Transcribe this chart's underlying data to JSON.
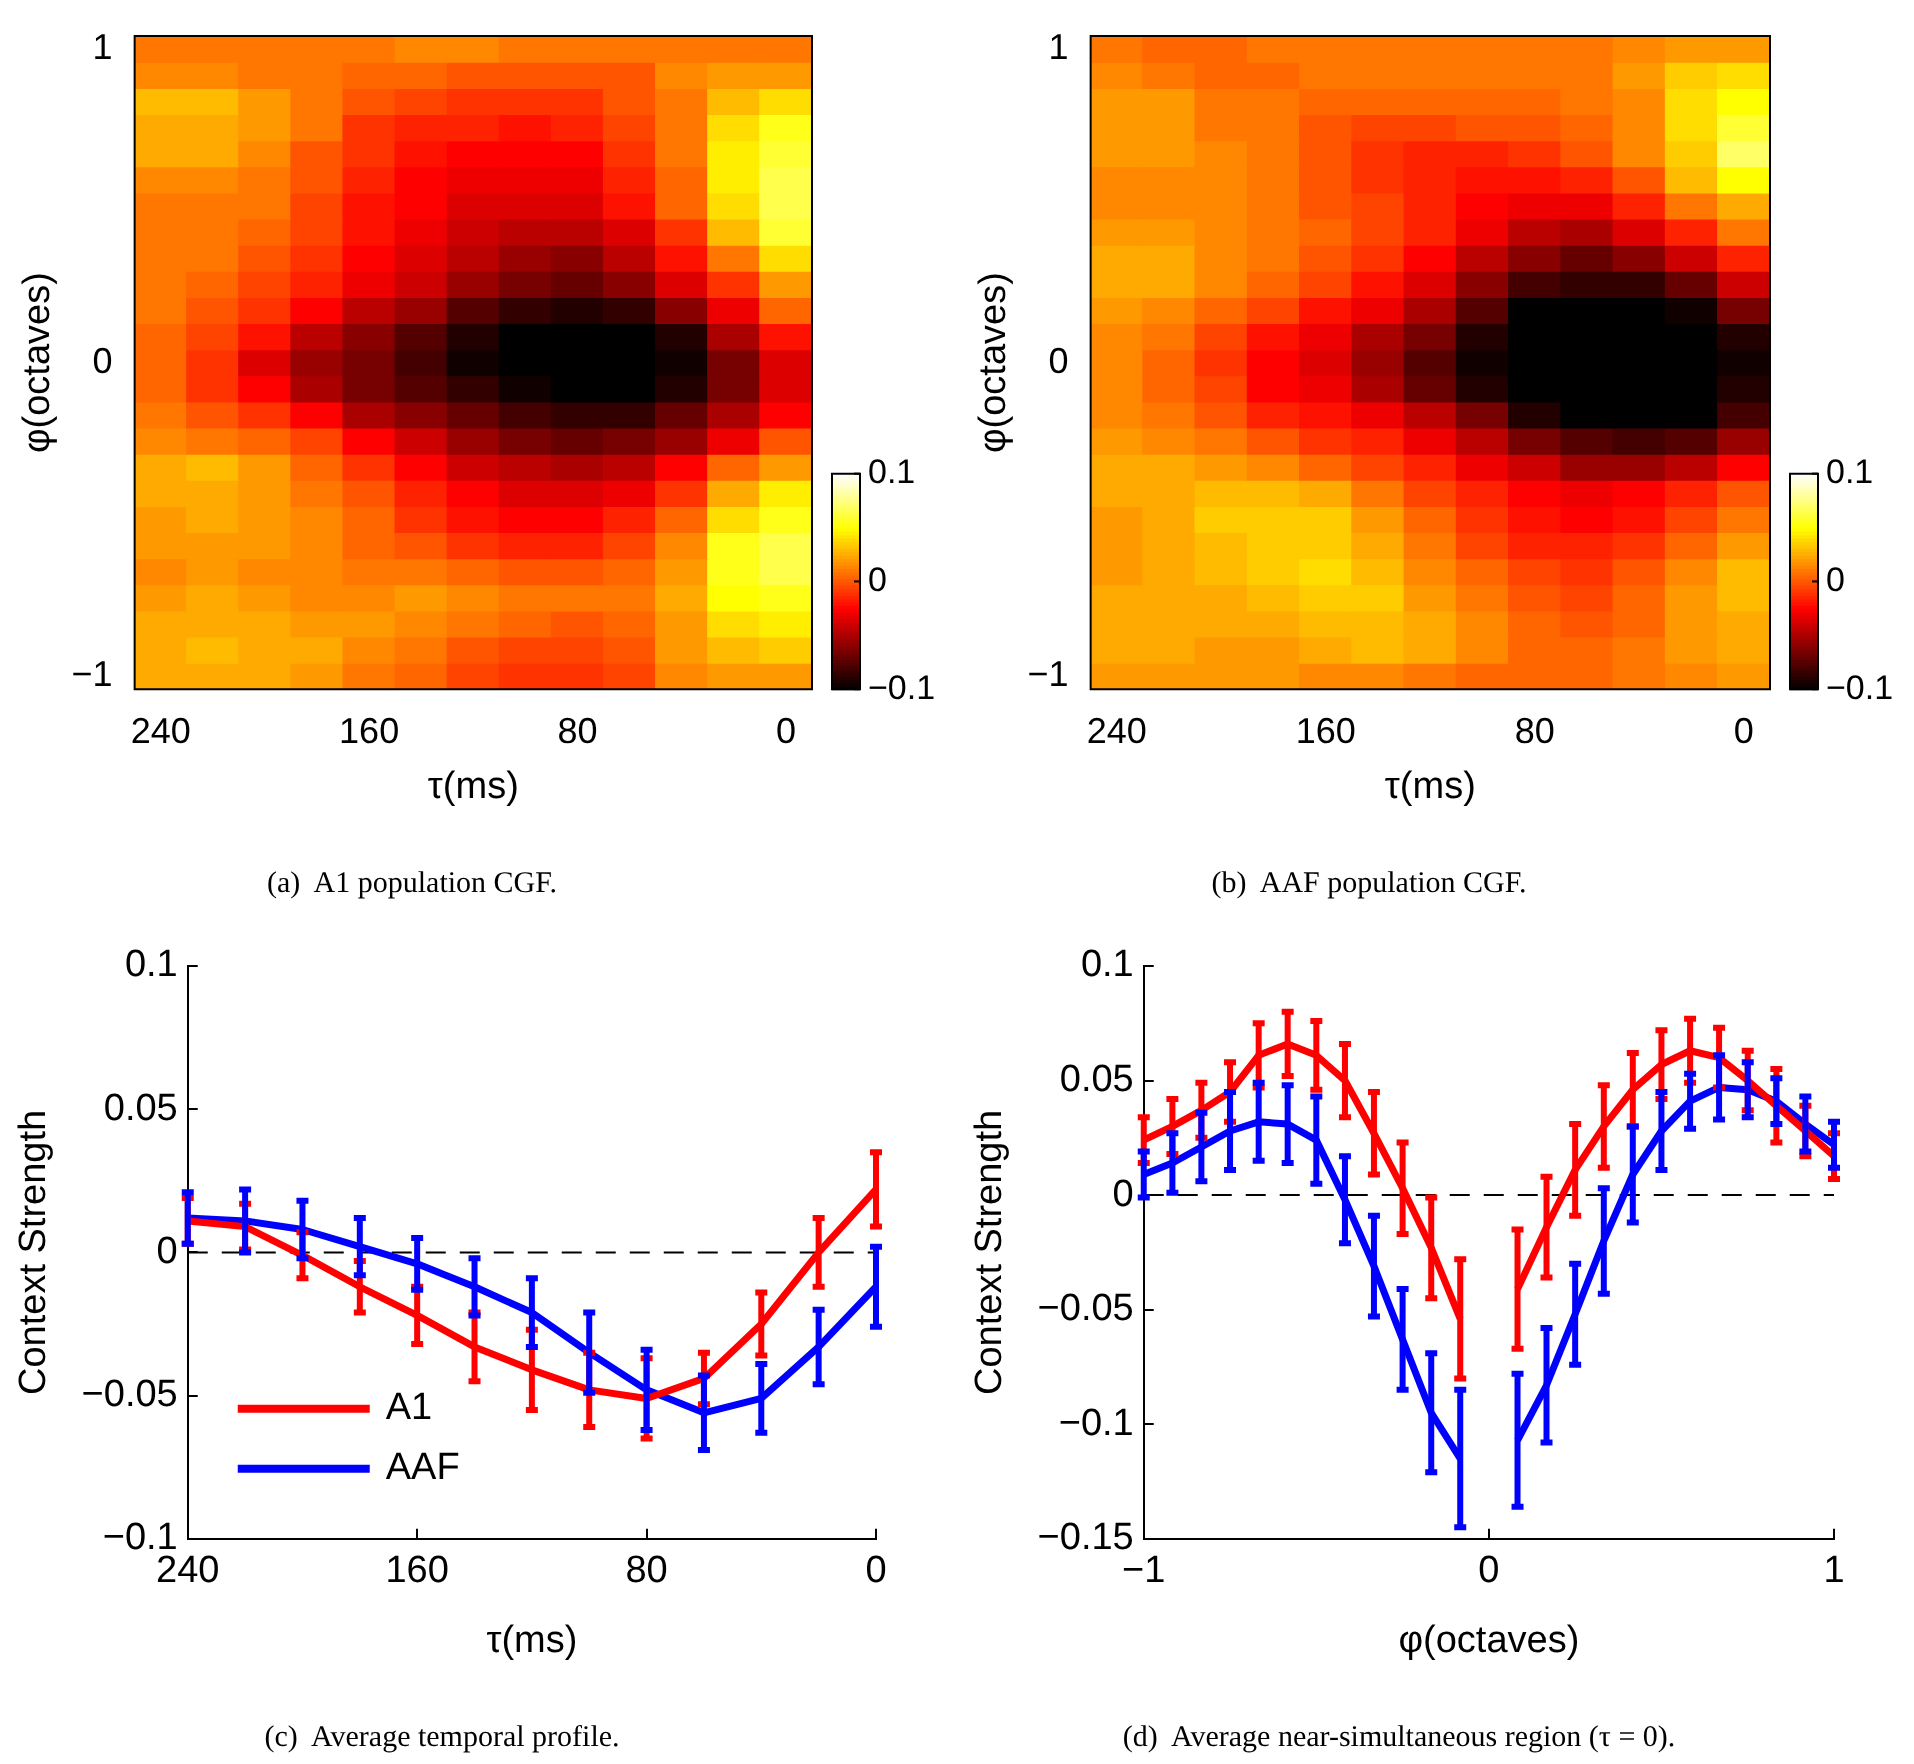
{
  "chart_data": [
    {
      "type": "heatmap",
      "title": "(a)  A1 population CGF.",
      "xlabel": "τ(ms)",
      "ylabel": "φ(octaves)",
      "categories": [
        "240",
        null,
        null,
        null,
        "160",
        null,
        null,
        null,
        "80",
        null,
        null,
        null,
        "0"
      ],
      "y_categories": [
        "1",
        null,
        null,
        null,
        null,
        null,
        null,
        null,
        null,
        null,
        null,
        null,
        "0",
        null,
        null,
        null,
        null,
        null,
        null,
        null,
        null,
        null,
        null,
        null,
        "−1"
      ],
      "cells": [
        [
          0.01,
          0.01,
          0.01,
          0.01,
          0.01,
          0.015,
          0.015,
          0.01,
          0.01,
          0.01,
          0.01,
          0.01,
          0.01
        ],
        [
          0.015,
          0.015,
          0.01,
          0.01,
          0.005,
          0.005,
          0.0,
          0.0,
          0.0,
          0.0,
          0.015,
          0.02,
          0.02
        ],
        [
          0.03,
          0.03,
          0.02,
          0.01,
          0,
          -0.005,
          -0.01,
          -0.01,
          -0.01,
          0,
          0.01,
          0.03,
          0.04
        ],
        [
          0.025,
          0.025,
          0.02,
          0.01,
          -0.01,
          -0.015,
          -0.015,
          -0.02,
          -0.015,
          -0.005,
          0.01,
          0.04,
          0.055
        ],
        [
          0.025,
          0.025,
          0.015,
          0.0,
          -0.01,
          -0.02,
          -0.025,
          -0.025,
          -0.025,
          -0.01,
          0.01,
          0.045,
          0.06
        ],
        [
          0.015,
          0.015,
          0.01,
          0.0,
          -0.015,
          -0.025,
          -0.03,
          -0.03,
          -0.03,
          -0.015,
          0.005,
          0.045,
          0.065
        ],
        [
          0.01,
          0.01,
          0.01,
          -0.005,
          -0.02,
          -0.025,
          -0.035,
          -0.035,
          -0.035,
          -0.02,
          0.005,
          0.04,
          0.065
        ],
        [
          0.01,
          0.01,
          0.005,
          -0.005,
          -0.02,
          -0.03,
          -0.04,
          -0.045,
          -0.045,
          -0.035,
          -0.01,
          0.03,
          0.06
        ],
        [
          0.01,
          0.01,
          0.0,
          -0.01,
          -0.025,
          -0.035,
          -0.045,
          -0.055,
          -0.06,
          -0.045,
          -0.02,
          0.01,
          0.04
        ],
        [
          0.01,
          0.005,
          -0.005,
          -0.015,
          -0.03,
          -0.04,
          -0.055,
          -0.065,
          -0.07,
          -0.06,
          -0.035,
          -0.01,
          0.02
        ],
        [
          0.01,
          0.0,
          -0.01,
          -0.025,
          -0.045,
          -0.055,
          -0.075,
          -0.085,
          -0.09,
          -0.085,
          -0.06,
          -0.03,
          0.005
        ],
        [
          0.005,
          -0.005,
          -0.02,
          -0.045,
          -0.06,
          -0.075,
          -0.09,
          -0.1,
          -0.1,
          -0.1,
          -0.09,
          -0.05,
          -0.02
        ],
        [
          0.005,
          -0.01,
          -0.035,
          -0.055,
          -0.065,
          -0.08,
          -0.095,
          -0.1,
          -0.1,
          -0.1,
          -0.095,
          -0.065,
          -0.035
        ],
        [
          0.005,
          -0.01,
          -0.025,
          -0.05,
          -0.065,
          -0.075,
          -0.085,
          -0.095,
          -0.1,
          -0.1,
          -0.09,
          -0.065,
          -0.035
        ],
        [
          0.01,
          0.0,
          -0.01,
          -0.025,
          -0.05,
          -0.06,
          -0.07,
          -0.08,
          -0.085,
          -0.085,
          -0.07,
          -0.05,
          -0.025
        ],
        [
          0.015,
          0.01,
          0.005,
          -0.005,
          -0.025,
          -0.04,
          -0.055,
          -0.065,
          -0.07,
          -0.065,
          -0.055,
          -0.03,
          0.0
        ],
        [
          0.025,
          0.03,
          0.02,
          0.005,
          -0.01,
          -0.025,
          -0.04,
          -0.045,
          -0.05,
          -0.045,
          -0.025,
          0.005,
          0.02
        ],
        [
          0.025,
          0.025,
          0.02,
          0.01,
          0.0,
          -0.015,
          -0.025,
          -0.035,
          -0.035,
          -0.03,
          -0.01,
          0.025,
          0.045
        ],
        [
          0.02,
          0.025,
          0.02,
          0.015,
          0.005,
          -0.01,
          -0.02,
          -0.025,
          -0.025,
          -0.015,
          0.005,
          0.04,
          0.055
        ],
        [
          0.02,
          0.02,
          0.02,
          0.015,
          0.005,
          0.0,
          -0.01,
          -0.015,
          -0.015,
          -0.005,
          0.015,
          0.055,
          0.065
        ],
        [
          0.015,
          0.02,
          0.015,
          0.015,
          0.01,
          0.01,
          0.005,
          0.0,
          0.0,
          0.005,
          0.02,
          0.055,
          0.065
        ],
        [
          0.02,
          0.025,
          0.02,
          0.015,
          0.015,
          0.02,
          0.015,
          0.01,
          0.01,
          0.01,
          0.025,
          0.05,
          0.055
        ],
        [
          0.025,
          0.025,
          0.025,
          0.02,
          0.02,
          0.015,
          0.01,
          0.005,
          0.0,
          0.005,
          0.02,
          0.04,
          0.045
        ],
        [
          0.025,
          0.03,
          0.025,
          0.025,
          0.015,
          0.01,
          0.0,
          -0.005,
          -0.005,
          0.0,
          0.02,
          0.03,
          0.035
        ],
        [
          0.025,
          0.025,
          0.025,
          0.02,
          0.01,
          0.005,
          -0.005,
          -0.01,
          -0.01,
          -0.005,
          0.015,
          0.02,
          0.02
        ]
      ],
      "clim": [
        -0.1,
        0.1
      ],
      "cticks": [
        -0.1,
        0,
        0.1
      ]
    },
    {
      "type": "heatmap",
      "title": "(b)  AAF population CGF.",
      "xlabel": "τ(ms)",
      "ylabel": "φ(octaves)",
      "categories": [
        "240",
        null,
        null,
        null,
        "160",
        null,
        null,
        null,
        "80",
        null,
        null,
        null,
        "0"
      ],
      "y_categories": [
        "1",
        null,
        null,
        null,
        null,
        null,
        null,
        null,
        null,
        null,
        null,
        null,
        "0",
        null,
        null,
        null,
        null,
        null,
        null,
        null,
        null,
        null,
        null,
        null,
        "−1"
      ],
      "cells": [
        [
          0.01,
          0.005,
          0.005,
          0.01,
          0.01,
          0.01,
          0.01,
          0.01,
          0.01,
          0.01,
          0.015,
          0.02,
          0.02
        ],
        [
          0.015,
          0.01,
          0.005,
          0.005,
          0.01,
          0.01,
          0.01,
          0.01,
          0.01,
          0.01,
          0.02,
          0.035,
          0.04
        ],
        [
          0.02,
          0.02,
          0.01,
          0.01,
          0.005,
          0.005,
          0.005,
          0.005,
          0.005,
          0.01,
          0.015,
          0.04,
          0.05
        ],
        [
          0.02,
          0.02,
          0.01,
          0.01,
          0.0,
          -0.005,
          -0.005,
          0.0,
          0.0,
          0.005,
          0.015,
          0.04,
          0.06
        ],
        [
          0.02,
          0.02,
          0.015,
          0.01,
          0.0,
          -0.01,
          -0.015,
          -0.015,
          -0.01,
          0.0,
          0.015,
          0.035,
          0.07
        ],
        [
          0.015,
          0.015,
          0.015,
          0.01,
          0.0,
          -0.01,
          -0.015,
          -0.02,
          -0.02,
          -0.015,
          0.0,
          0.03,
          0.05
        ],
        [
          0.015,
          0.015,
          0.015,
          0.01,
          0.0,
          -0.005,
          -0.015,
          -0.025,
          -0.03,
          -0.03,
          -0.015,
          0.01,
          0.025
        ],
        [
          0.02,
          0.02,
          0.015,
          0.01,
          0.005,
          -0.005,
          -0.015,
          -0.03,
          -0.045,
          -0.05,
          -0.035,
          -0.015,
          0.01
        ],
        [
          0.025,
          0.025,
          0.015,
          0.01,
          0.0,
          -0.01,
          -0.025,
          -0.045,
          -0.06,
          -0.07,
          -0.06,
          -0.04,
          -0.015
        ],
        [
          0.025,
          0.025,
          0.015,
          0.005,
          -0.005,
          -0.02,
          -0.035,
          -0.06,
          -0.08,
          -0.085,
          -0.085,
          -0.07,
          -0.04
        ],
        [
          0.02,
          0.015,
          0.005,
          -0.005,
          -0.02,
          -0.03,
          -0.05,
          -0.075,
          -0.1,
          -0.1,
          -0.1,
          -0.095,
          -0.065
        ],
        [
          0.015,
          0.01,
          -0.005,
          -0.02,
          -0.03,
          -0.05,
          -0.065,
          -0.09,
          -0.1,
          -0.1,
          -0.1,
          -0.1,
          -0.09
        ],
        [
          0.015,
          0.005,
          -0.01,
          -0.025,
          -0.035,
          -0.055,
          -0.075,
          -0.095,
          -0.1,
          -0.1,
          -0.1,
          -0.1,
          -0.095
        ],
        [
          0.015,
          0.005,
          -0.005,
          -0.025,
          -0.03,
          -0.05,
          -0.07,
          -0.09,
          -0.1,
          -0.1,
          -0.1,
          -0.1,
          -0.09
        ],
        [
          0.015,
          0.01,
          0.0,
          -0.015,
          -0.02,
          -0.03,
          -0.045,
          -0.065,
          -0.09,
          -0.1,
          -0.1,
          -0.1,
          -0.08
        ],
        [
          0.02,
          0.015,
          0.01,
          0.0,
          -0.01,
          -0.015,
          -0.03,
          -0.045,
          -0.065,
          -0.075,
          -0.08,
          -0.075,
          -0.055
        ],
        [
          0.025,
          0.025,
          0.02,
          0.015,
          0.005,
          -0.005,
          -0.015,
          -0.03,
          -0.04,
          -0.055,
          -0.055,
          -0.045,
          -0.025
        ],
        [
          0.025,
          0.025,
          0.03,
          0.03,
          0.025,
          0.01,
          -0.005,
          -0.015,
          -0.025,
          -0.03,
          -0.025,
          -0.015,
          0.0
        ],
        [
          0.02,
          0.025,
          0.035,
          0.035,
          0.035,
          0.02,
          0.005,
          -0.01,
          -0.02,
          -0.025,
          -0.02,
          -0.005,
          0.01
        ],
        [
          0.02,
          0.025,
          0.03,
          0.035,
          0.035,
          0.025,
          0.01,
          -0.005,
          -0.015,
          -0.015,
          -0.01,
          0.005,
          0.02
        ],
        [
          0.02,
          0.025,
          0.03,
          0.035,
          0.04,
          0.03,
          0.015,
          0.005,
          -0.005,
          -0.01,
          0.0,
          0.015,
          0.03
        ],
        [
          0.025,
          0.025,
          0.025,
          0.03,
          0.035,
          0.035,
          0.02,
          0.01,
          0.0,
          -0.005,
          0.005,
          0.02,
          0.03
        ],
        [
          0.025,
          0.025,
          0.025,
          0.025,
          0.03,
          0.03,
          0.025,
          0.015,
          0.005,
          0.0,
          0.005,
          0.02,
          0.025
        ],
        [
          0.025,
          0.025,
          0.02,
          0.02,
          0.025,
          0.03,
          0.025,
          0.015,
          0.005,
          0.005,
          0.01,
          0.02,
          0.025
        ],
        [
          0.02,
          0.02,
          0.02,
          0.02,
          0.015,
          0.015,
          0.01,
          0.005,
          0.005,
          0.005,
          0.01,
          0.015,
          0.02
        ]
      ],
      "clim": [
        -0.1,
        0.1
      ],
      "cticks": [
        -0.1,
        0,
        0.1
      ]
    },
    {
      "type": "line",
      "title": "(c)  Average temporal profile.",
      "xlabel": "τ(ms)",
      "ylabel": "Context Strength",
      "x": [
        240,
        220,
        200,
        180,
        160,
        140,
        120,
        100,
        80,
        60,
        40,
        20,
        0
      ],
      "xlim": [
        240,
        0
      ],
      "xticks": [
        240,
        160,
        80,
        0
      ],
      "ylim": [
        -0.1,
        0.1
      ],
      "yticks": [
        -0.1,
        -0.05,
        0,
        0.05,
        0.1
      ],
      "series": [
        {
          "name": "A1",
          "color": "#ff0000",
          "values": [
            0.011,
            0.009,
            -0.001,
            -0.012,
            -0.022,
            -0.033,
            -0.041,
            -0.048,
            -0.051,
            -0.044,
            -0.025,
            0.0,
            0.022
          ],
          "errors": [
            0.008,
            0.008,
            0.008,
            0.009,
            0.01,
            0.012,
            0.014,
            0.013,
            0.014,
            0.009,
            0.011,
            0.012,
            0.013
          ]
        },
        {
          "name": "AAF",
          "color": "#0000ff",
          "values": [
            0.012,
            0.011,
            0.008,
            0.002,
            -0.004,
            -0.012,
            -0.021,
            -0.035,
            -0.048,
            -0.056,
            -0.051,
            -0.033,
            -0.012
          ],
          "errors": [
            0.009,
            0.011,
            0.01,
            0.01,
            0.009,
            0.01,
            0.012,
            0.014,
            0.014,
            0.013,
            0.012,
            0.013,
            0.014
          ]
        }
      ],
      "ref_lines": [
        {
          "axis": "y",
          "value": 0,
          "color": "#000000",
          "line_style": "dashed"
        }
      ],
      "legend": "bottom left",
      "marker": "none",
      "grid": false
    },
    {
      "type": "line",
      "title": "(d)  Average near-simultaneous region (τ = 0).",
      "xlabel": "φ(octaves)",
      "ylabel": "Context Strength",
      "x": [
        -1,
        -0.917,
        -0.833,
        -0.75,
        -0.667,
        -0.583,
        -0.5,
        -0.417,
        -0.333,
        -0.25,
        -0.167,
        -0.083,
        0,
        0.083,
        0.167,
        0.25,
        0.333,
        0.417,
        0.5,
        0.583,
        0.667,
        0.75,
        0.833,
        0.917,
        1
      ],
      "xlim": [
        -1,
        1
      ],
      "xticks": [
        -1,
        0,
        1
      ],
      "ylim": [
        -0.15,
        0.1
      ],
      "yticks": [
        -0.15,
        -0.1,
        -0.05,
        0,
        0.05,
        0.1
      ],
      "series": [
        {
          "color": "#ff0000",
          "values": [
            0.024,
            0.03,
            0.037,
            0.045,
            0.061,
            0.066,
            0.061,
            0.05,
            0.027,
            0.003,
            -0.023,
            -0.054,
            null,
            -0.041,
            -0.014,
            0.011,
            0.03,
            0.046,
            0.057,
            0.063,
            0.06,
            0.05,
            0.039,
            0.028,
            0.017
          ],
          "errors": [
            0.01,
            0.012,
            0.012,
            0.013,
            0.014,
            0.014,
            0.015,
            0.016,
            0.018,
            0.02,
            0.022,
            0.026,
            null,
            0.026,
            0.022,
            0.02,
            0.018,
            0.016,
            0.015,
            0.014,
            0.013,
            0.013,
            0.016,
            0.011,
            0.01
          ]
        },
        {
          "color": "#0000ff",
          "values": [
            0.009,
            0.014,
            0.021,
            0.028,
            0.032,
            0.031,
            0.024,
            -0.002,
            -0.031,
            -0.063,
            -0.095,
            -0.115,
            null,
            -0.107,
            -0.083,
            -0.052,
            -0.02,
            0.009,
            0.028,
            0.041,
            0.047,
            0.046,
            0.041,
            0.031,
            0.022
          ],
          "errors": [
            0.01,
            0.013,
            0.015,
            0.017,
            0.017,
            0.017,
            0.019,
            0.019,
            0.022,
            0.022,
            0.026,
            0.03,
            null,
            0.029,
            0.025,
            0.022,
            0.023,
            0.021,
            0.017,
            0.012,
            0.014,
            0.012,
            0.01,
            0.012,
            0.01
          ]
        }
      ],
      "ref_lines": [
        {
          "axis": "y",
          "value": 0,
          "color": "#000000",
          "line_style": "dashed"
        }
      ],
      "marker": "none",
      "grid": false
    }
  ]
}
